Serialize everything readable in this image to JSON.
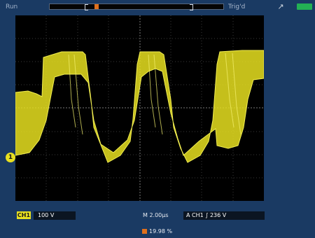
{
  "header": {
    "run_label": "Run",
    "trigger_status": "Trig'd",
    "trigger_level_icon": "trigger-slope-icon",
    "battery_icon": "battery-icon"
  },
  "screen": {
    "trigger_marker_label": "T",
    "channel_marker_label": "1"
  },
  "footer": {
    "ch1_badge": "CH1",
    "ch1_scale": "100 V",
    "timebase": "M 2.00µs",
    "trigger_readout": "A CH1 ∫ 236 V",
    "cursor_readout": "19.98 %"
  },
  "colors": {
    "trace": "#e8e020",
    "background": "#1a3a63",
    "screen": "#000000",
    "marker": "#e0701c"
  }
}
